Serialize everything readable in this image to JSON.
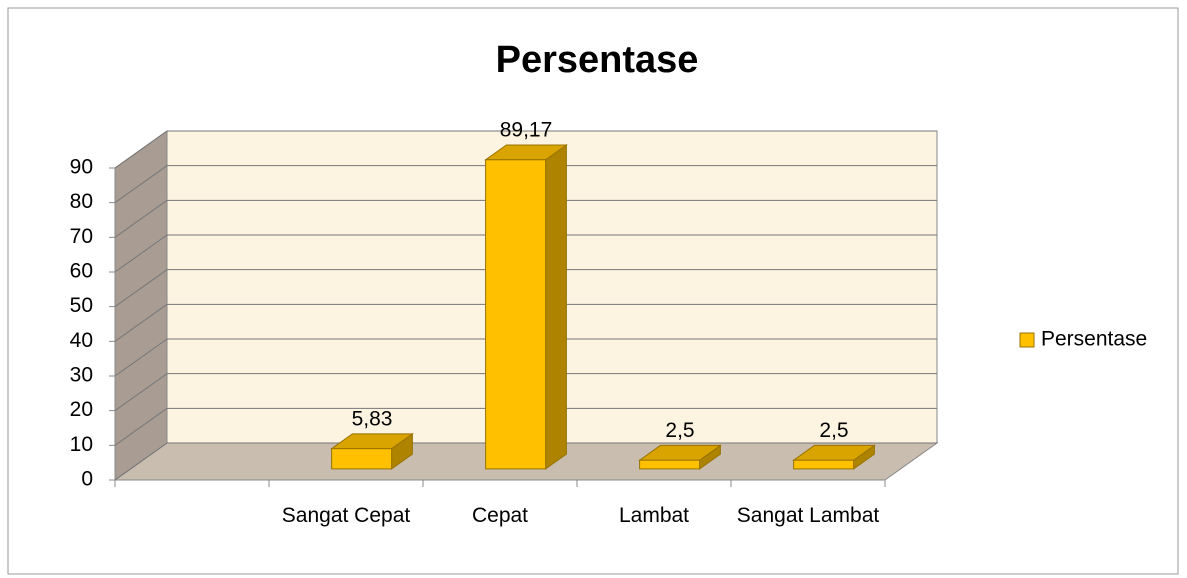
{
  "chart_data": {
    "type": "bar3d",
    "title": "Persentase",
    "categories": [
      null,
      "Sangat Cepat",
      "Cepat",
      "Lambat",
      "Sangat Lambat"
    ],
    "series": [
      {
        "name": "Persentase",
        "color": "#ffc000",
        "values": [
          null,
          5.83,
          89.17,
          2.5,
          2.5
        ],
        "value_labels": [
          null,
          "5,83",
          "89,17",
          "2,5",
          "2,5"
        ]
      }
    ],
    "ylim": [
      0,
      90
    ],
    "yticks": [
      0,
      10,
      20,
      30,
      40,
      50,
      60,
      70,
      80,
      90
    ],
    "grid": true,
    "legend": "right"
  }
}
